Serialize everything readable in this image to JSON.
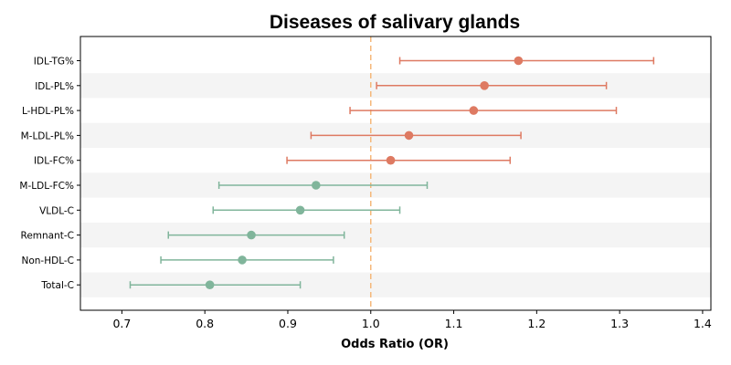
{
  "chart_data": {
    "type": "forest",
    "title": "Diseases of salivary glands",
    "xlabel": "Odds Ratio (OR)",
    "xlim": [
      0.65,
      1.41
    ],
    "xticks": [
      "0.7",
      "0.8",
      "0.9",
      "1.0",
      "1.1",
      "1.2",
      "1.3",
      "1.4"
    ],
    "reference_line": 1.0,
    "reference_color": "#f5b87a",
    "colors": {
      "risk": "#de7a62",
      "protective": "#80b59b"
    },
    "rows": [
      {
        "label": "IDL-TG%",
        "or": 1.178,
        "lower": 1.035,
        "upper": 1.341,
        "group": "risk"
      },
      {
        "label": "IDL-PL%",
        "or": 1.137,
        "lower": 1.007,
        "upper": 1.284,
        "group": "risk"
      },
      {
        "label": "L-HDL-PL%",
        "or": 1.124,
        "lower": 0.975,
        "upper": 1.296,
        "group": "risk"
      },
      {
        "label": "M-LDL-PL%",
        "or": 1.046,
        "lower": 0.928,
        "upper": 1.181,
        "group": "risk"
      },
      {
        "label": "IDL-FC%",
        "or": 1.024,
        "lower": 0.899,
        "upper": 1.168,
        "group": "risk"
      },
      {
        "label": "M-LDL-FC%",
        "or": 0.934,
        "lower": 0.817,
        "upper": 1.068,
        "group": "protective"
      },
      {
        "label": "VLDL-C",
        "or": 0.915,
        "lower": 0.81,
        "upper": 1.035,
        "group": "protective"
      },
      {
        "label": "Remnant-C",
        "or": 0.856,
        "lower": 0.756,
        "upper": 0.968,
        "group": "protective"
      },
      {
        "label": "Non-HDL-C",
        "or": 0.845,
        "lower": 0.747,
        "upper": 0.955,
        "group": "protective"
      },
      {
        "label": "Total-C",
        "or": 0.806,
        "lower": 0.71,
        "upper": 0.915,
        "group": "protective"
      }
    ]
  }
}
